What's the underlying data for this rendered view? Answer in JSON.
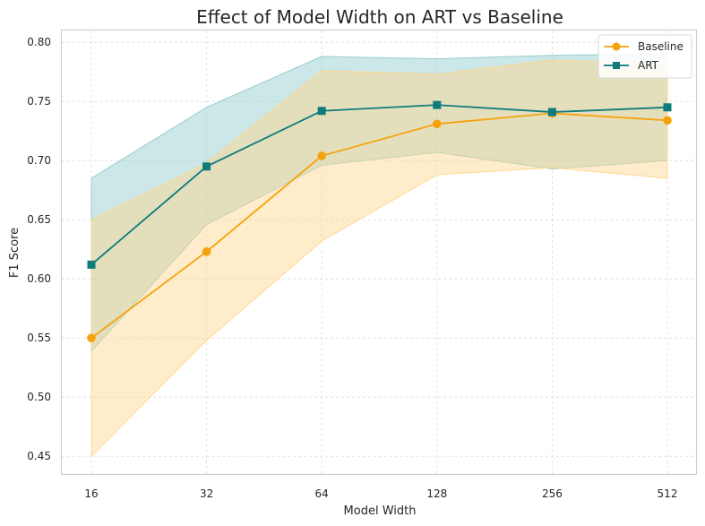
{
  "chart_data": {
    "type": "line",
    "title": "Effect of Model Width on ART vs Baseline",
    "xlabel": "Model Width",
    "ylabel": "F1 Score",
    "categories": [
      "16",
      "32",
      "64",
      "128",
      "256",
      "512"
    ],
    "ylim": [
      0.435,
      0.81
    ],
    "yticks": [
      0.45,
      0.5,
      0.55,
      0.6,
      0.65,
      0.7,
      0.75,
      0.8
    ],
    "ytick_labels": [
      "0.45",
      "0.50",
      "0.55",
      "0.60",
      "0.65",
      "0.70",
      "0.75",
      "0.80"
    ],
    "grid": true,
    "legend_position": "top-right",
    "series": [
      {
        "name": "Baseline",
        "marker": "circle",
        "color": "#f5a30c",
        "band_color": "#ffd58a",
        "values": [
          0.55,
          0.623,
          0.704,
          0.731,
          0.74,
          0.734
        ],
        "lower": [
          0.45,
          0.548,
          0.632,
          0.688,
          0.694,
          0.685
        ],
        "upper": [
          0.65,
          0.698,
          0.776,
          0.773,
          0.785,
          0.782
        ]
      },
      {
        "name": "ART",
        "marker": "square",
        "color": "#0f7b7b",
        "band_color": "#8fcaca",
        "values": [
          0.612,
          0.695,
          0.742,
          0.747,
          0.741,
          0.745
        ],
        "lower": [
          0.539,
          0.646,
          0.696,
          0.707,
          0.693,
          0.7
        ],
        "upper": [
          0.685,
          0.745,
          0.788,
          0.786,
          0.789,
          0.79
        ]
      }
    ]
  }
}
